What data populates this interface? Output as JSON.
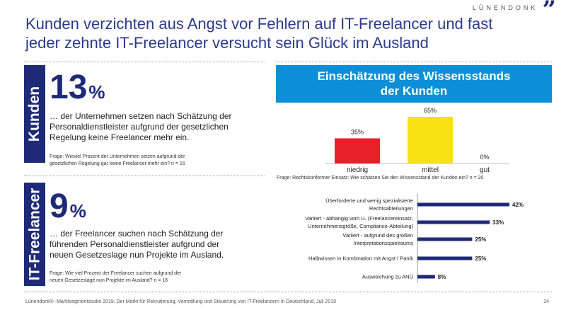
{
  "brand": {
    "name": "LÜNENDONK",
    "mark": "”"
  },
  "headline": {
    "line1": "Kunden verzichten aus Angst vor Fehlern auf IT-Freelancer und fast",
    "line2": "jeder zehnte IT-Freelancer versucht sein Glück im Ausland"
  },
  "kunden": {
    "tab_label": "Kunden",
    "value": "13",
    "unit": "%",
    "desc1": "… der Unternehmen setzen nach Schätzung der",
    "desc2": "Personaldienstleister aufgrund der gesetzlichen",
    "desc3": "Regelung keine Freelancer mehr ein.",
    "question1": "Frage: Wieviel Prozent der Unternehmen setzen aufgrund der",
    "question2": "gesetzlichen Regelung gar keine Freelancer mehr ein? n = 16"
  },
  "freelancer": {
    "tab_label": "IT-Freelancer",
    "value": "9",
    "unit": "%",
    "desc1": "… der Freelancer suchen nach Schätzung der",
    "desc2": "führenden Personaldienstleister aufgrund der",
    "desc3": "neuen Gesetzeslage nun Projekte im Ausland.",
    "question1": "Frage: Wie viel Prozent der Freelancer suchen aufgrund der",
    "question2": "neuen Gesetzeslage nun Projekte im Ausland? n = 16"
  },
  "chart_title": {
    "line1": "Einschätzung des Wissensstands",
    "line2": "der Kunden"
  },
  "chart_data": [
    {
      "type": "bar",
      "title": "Einschätzung des Wissensstands der Kunden",
      "categories": [
        "niedrig",
        "mittel",
        "gut"
      ],
      "values": [
        35,
        65,
        0
      ],
      "value_labels": [
        "35%",
        "65%",
        "0%"
      ],
      "colors": [
        "#e8202a",
        "#f7e214",
        "#bbbbbb"
      ],
      "ylim": [
        0,
        65
      ],
      "grid": false,
      "note": "Frage: Rechtskonformer Einsatz: Wie schätzen Sie den Wissensstand der Kunden ein? n = 20"
    },
    {
      "type": "bar",
      "orientation": "horizontal",
      "categories": [
        [
          "Überforderte und wenig spezialisierte",
          "Rechtsabteilungen"
        ],
        [
          "Variiert - abhängig vom U. (Freelancereinsatz,",
          "Unternehmensgröße, Compliance-Abteilung)"
        ],
        [
          "Variiert - aufgrund des großen",
          "Interpretationsspielraums"
        ],
        [
          "Halbwissen in Kombination mit Angst / Panik"
        ],
        [
          "Ausweichung zu ANÜ"
        ]
      ],
      "values": [
        42,
        33,
        25,
        25,
        8
      ],
      "value_labels": [
        "42%",
        "33%",
        "25%",
        "25%",
        "8%"
      ],
      "colors": [
        "#1e2a78"
      ],
      "xlim": [
        0,
        42
      ],
      "grid": false
    }
  ],
  "footer": {
    "text": "Lünendonk® -Marktsegmentstudie 2019: Der Markt für Rekrutierung, Vermittlung und Steuerung von IT-Freelancern in Deutschland, Juli 2019",
    "page": "24"
  }
}
